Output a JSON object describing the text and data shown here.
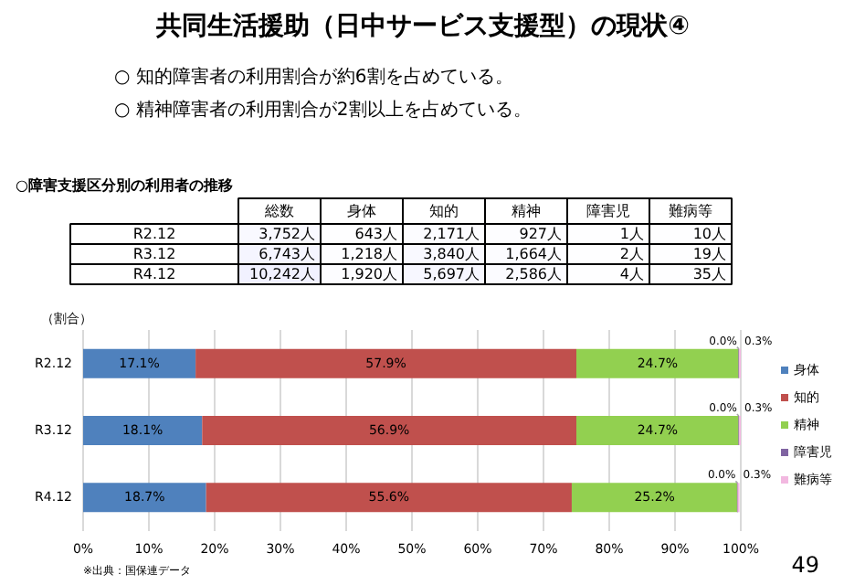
{
  "chart_data": [
    {
      "type": "other",
      "title": "共同生活援助（日中サービス支援型）の現状④",
      "annotations": [
        "○  知的障害者の利用割合が約6割を占めている。",
        "○  精神障害者の利用割合が2割以上を占めている。"
      ]
    },
    {
      "type": "heatmap",
      "title": "○障害支援区分別の利用者の推移",
      "categories": [
        "総数",
        "身体",
        "知的",
        "精神",
        "障害児",
        "難病等"
      ],
      "y_categories": [
        "R2.12",
        "R3.12",
        "R4.12"
      ],
      "cells": [
        [
          3752,
          643,
          2171,
          927,
          1,
          10
        ],
        [
          6743,
          1218,
          3840,
          1664,
          2,
          19
        ],
        [
          10242,
          1920,
          5697,
          2586,
          4,
          35
        ]
      ],
      "cell_labels": [
        [
          "3,752人",
          "643人",
          "2,171人",
          "927人",
          "1人",
          "10人"
        ],
        [
          "6,743人",
          "1,218人",
          "3,840人",
          "1,664人",
          "2人",
          "19人"
        ],
        [
          "10,242人",
          "1,920人",
          "5,697人",
          "2,586人",
          "4人",
          "35人"
        ]
      ]
    },
    {
      "type": "bar",
      "orientation": "horizontal",
      "stacked": true,
      "ylabel": "（割合）",
      "categories": [
        "R2.12",
        "R3.12",
        "R4.12"
      ],
      "series": [
        {
          "name": "身体",
          "color": "#4f81bd",
          "values": [
            17.1,
            18.1,
            18.7
          ],
          "value_labels": [
            "17.1%",
            "18.1%",
            "18.7%"
          ]
        },
        {
          "name": "知的",
          "color": "#c0504d",
          "values": [
            57.9,
            56.9,
            55.6
          ],
          "value_labels": [
            "57.9%",
            "56.9%",
            "55.6%"
          ]
        },
        {
          "name": "精神",
          "color": "#92d050",
          "values": [
            24.7,
            24.7,
            25.2
          ],
          "value_labels": [
            "24.7%",
            "24.7%",
            "25.2%"
          ]
        },
        {
          "name": "障害児",
          "color": "#8064a2",
          "values": [
            0.0,
            0.0,
            0.0
          ],
          "value_labels": [
            "0.0%",
            "0.0%",
            "0.0%"
          ]
        },
        {
          "name": "難病等",
          "color": "#f2b8e0",
          "values": [
            0.3,
            0.3,
            0.3
          ],
          "value_labels": [
            "0.3%",
            "0.3%",
            "0.3%"
          ]
        }
      ],
      "xlim": [
        0,
        100
      ],
      "xticks": [
        {
          "value": 0,
          "label": "0%"
        },
        {
          "value": 10,
          "label": "10%"
        },
        {
          "value": 20,
          "label": "20%"
        },
        {
          "value": 30,
          "label": "30%"
        },
        {
          "value": 40,
          "label": "40%"
        },
        {
          "value": 50,
          "label": "50%"
        },
        {
          "value": 60,
          "label": "60%"
        },
        {
          "value": 70,
          "label": "70%"
        },
        {
          "value": 80,
          "label": "80%"
        },
        {
          "value": 90,
          "label": "90%"
        },
        {
          "value": 100,
          "label": "100%"
        }
      ],
      "grid": "x",
      "legend": "right",
      "annotations": [
        "※出典：国保連データ",
        "49"
      ]
    }
  ]
}
